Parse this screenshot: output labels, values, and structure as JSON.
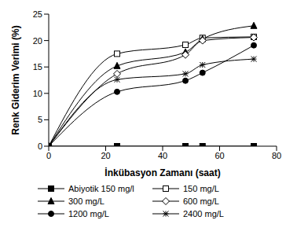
{
  "chart_data": {
    "type": "line",
    "x_label": "İnkübasyon Zamanı (saat)",
    "y_label": "Renk Giderim Verimi (%)",
    "x": [
      0,
      24,
      48,
      54,
      72
    ],
    "xlim": [
      0,
      80
    ],
    "xticks": [
      0,
      20,
      40,
      60,
      80
    ],
    "ylim": [
      0,
      25
    ],
    "yticks": [
      0,
      5,
      10,
      15,
      20,
      25
    ],
    "grid": false,
    "legend": "bottom",
    "series": [
      {
        "name": "Abiyotik 150 mg/l",
        "color": "#000000",
        "marker": "square",
        "values": [
          0,
          0,
          0,
          0,
          0
        ]
      },
      {
        "name": "150 mg/L",
        "color": "#000000",
        "marker": "square_open",
        "values": [
          0,
          17.5,
          19.2,
          20.5,
          20.7
        ]
      },
      {
        "name": "300 mg/L",
        "color": "#000000",
        "marker": "triangle",
        "values": [
          0,
          15.2,
          17.8,
          20.3,
          22.8
        ]
      },
      {
        "name": "600 mg/L",
        "color": "#000000",
        "marker": "diamond_open",
        "values": [
          0,
          13.7,
          17.3,
          20.0,
          20.6
        ]
      },
      {
        "name": "1200 mg/L",
        "color": "#000000",
        "marker": "circle",
        "values": [
          0,
          10.3,
          12.4,
          13.9,
          19.1
        ]
      },
      {
        "name": "2400 mg/L",
        "color": "#000000",
        "marker": "star",
        "values": [
          0,
          12.6,
          13.7,
          15.4,
          16.5
        ]
      }
    ]
  }
}
